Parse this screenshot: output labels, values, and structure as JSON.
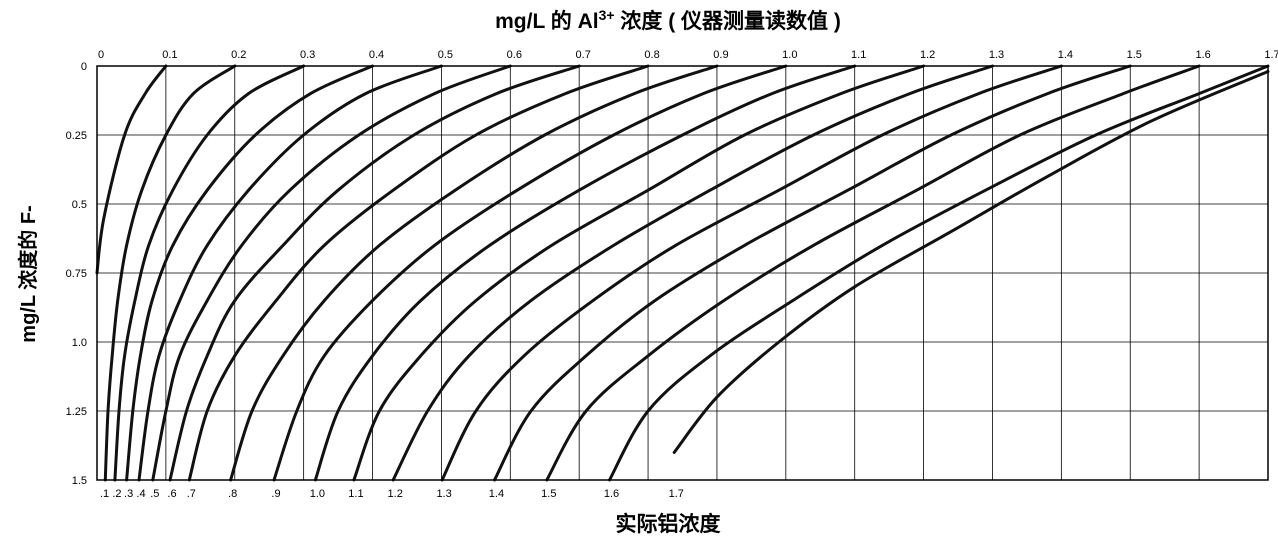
{
  "chart_data": {
    "type": "line",
    "title": "mg/L 的 Al",
    "title_superscript": "3+",
    "title_suffix": " 浓度 ( 仪器测量读数值 )",
    "ylabel": "mg/L 浓度的 F-",
    "xlabel": "实际铝浓度",
    "x_axis": {
      "range": [
        0,
        1.7
      ],
      "ticks": [
        0,
        0.1,
        0.2,
        0.3,
        0.4,
        0.5,
        0.6,
        0.7,
        0.8,
        0.9,
        1.0,
        1.1,
        1.2,
        1.3,
        1.4,
        1.5,
        1.6,
        1.7
      ],
      "tick_labels": [
        "0",
        "0.1",
        "0.2",
        "0.3",
        "0.4",
        "0.5",
        "0.6",
        "0.7",
        "0.8",
        "0.9",
        "1.0",
        "1.1",
        "1.2",
        "1.3",
        "1.4",
        "1.5",
        "1.6",
        "1.7"
      ],
      "position": "top"
    },
    "y_axis": {
      "range": [
        0,
        1.5
      ],
      "inverted": true,
      "ticks": [
        0,
        0.25,
        0.5,
        0.75,
        1.0,
        1.25,
        1.5
      ],
      "tick_labels": [
        "0",
        "0.25",
        "0.5",
        "0.75",
        "1.0",
        "1.25",
        "1.5"
      ]
    },
    "grid": true,
    "bottom_labels": [
      {
        "text": ".1",
        "x": 0.008
      },
      {
        "text": ".2",
        "x": 0.026
      },
      {
        "text": ".3",
        "x": 0.043
      },
      {
        "text": ".4",
        "x": 0.061
      },
      {
        "text": ".5",
        "x": 0.081
      },
      {
        "text": ".6",
        "x": 0.106
      },
      {
        "text": ".7",
        "x": 0.134
      },
      {
        "text": ".8",
        "x": 0.194
      },
      {
        "text": ".9",
        "x": 0.257
      },
      {
        "text": "1.0",
        "x": 0.317
      },
      {
        "text": "1.1",
        "x": 0.373
      },
      {
        "text": "1.2",
        "x": 0.43
      },
      {
        "text": "1.3",
        "x": 0.501
      },
      {
        "text": "1.4",
        "x": 0.577
      },
      {
        "text": "1.5",
        "x": 0.653
      },
      {
        "text": "1.6",
        "x": 0.744
      },
      {
        "text": "1.7",
        "x": 0.838
      }
    ],
    "series": [
      {
        "x": [
          0.1,
          0.07,
          0.04,
          0.01,
          0.0
        ],
        "y": [
          0,
          0.1,
          0.25,
          0.55,
          0.75
        ]
      },
      {
        "x": [
          0.2,
          0.14,
          0.1,
          0.065,
          0.043,
          0.03,
          0.022,
          0.016,
          0.012
        ],
        "y": [
          0,
          0.1,
          0.25,
          0.45,
          0.65,
          0.85,
          1.05,
          1.25,
          1.5
        ]
      },
      {
        "x": [
          0.3,
          0.22,
          0.16,
          0.11,
          0.075,
          0.055,
          0.04,
          0.032,
          0.026
        ],
        "y": [
          0,
          0.1,
          0.25,
          0.45,
          0.65,
          0.85,
          1.05,
          1.25,
          1.5
        ]
      },
      {
        "x": [
          0.4,
          0.31,
          0.23,
          0.16,
          0.11,
          0.08,
          0.063,
          0.052,
          0.043
        ],
        "y": [
          0,
          0.1,
          0.25,
          0.45,
          0.65,
          0.85,
          1.05,
          1.25,
          1.5
        ]
      },
      {
        "x": [
          0.5,
          0.39,
          0.3,
          0.22,
          0.16,
          0.12,
          0.09,
          0.074,
          0.061
        ],
        "y": [
          0,
          0.1,
          0.25,
          0.45,
          0.65,
          0.85,
          1.05,
          1.25,
          1.5
        ]
      },
      {
        "x": [
          0.6,
          0.49,
          0.38,
          0.28,
          0.21,
          0.16,
          0.12,
          0.1,
          0.081
        ],
        "y": [
          0,
          0.1,
          0.25,
          0.45,
          0.65,
          0.85,
          1.05,
          1.25,
          1.5
        ]
      },
      {
        "x": [
          0.7,
          0.58,
          0.46,
          0.35,
          0.27,
          0.2,
          0.16,
          0.13,
          0.106
        ],
        "y": [
          0,
          0.1,
          0.25,
          0.45,
          0.65,
          0.85,
          1.05,
          1.25,
          1.5
        ]
      },
      {
        "x": [
          0.8,
          0.68,
          0.55,
          0.43,
          0.33,
          0.26,
          0.2,
          0.16,
          0.134
        ],
        "y": [
          0,
          0.1,
          0.25,
          0.45,
          0.65,
          0.85,
          1.05,
          1.25,
          1.5
        ]
      },
      {
        "x": [
          0.9,
          0.78,
          0.65,
          0.52,
          0.41,
          0.33,
          0.27,
          0.225,
          0.194
        ],
        "y": [
          0,
          0.1,
          0.25,
          0.45,
          0.65,
          0.85,
          1.05,
          1.25,
          1.5
        ]
      },
      {
        "x": [
          1.0,
          0.88,
          0.75,
          0.61,
          0.49,
          0.4,
          0.33,
          0.29,
          0.257
        ],
        "y": [
          0,
          0.1,
          0.25,
          0.45,
          0.65,
          0.85,
          1.05,
          1.25,
          1.5
        ]
      },
      {
        "x": [
          1.1,
          0.98,
          0.85,
          0.7,
          0.57,
          0.47,
          0.4,
          0.35,
          0.317
        ],
        "y": [
          0,
          0.1,
          0.25,
          0.45,
          0.65,
          0.85,
          1.05,
          1.25,
          1.5
        ]
      },
      {
        "x": [
          1.2,
          1.08,
          0.94,
          0.8,
          0.66,
          0.55,
          0.47,
          0.41,
          0.373
        ],
        "y": [
          0,
          0.1,
          0.25,
          0.45,
          0.65,
          0.85,
          1.05,
          1.25,
          1.5
        ]
      },
      {
        "x": [
          1.3,
          1.18,
          1.04,
          0.89,
          0.75,
          0.63,
          0.54,
          0.48,
          0.43
        ],
        "y": [
          0,
          0.1,
          0.25,
          0.45,
          0.65,
          0.85,
          1.05,
          1.25,
          1.5
        ]
      },
      {
        "x": [
          1.4,
          1.28,
          1.14,
          0.99,
          0.84,
          0.72,
          0.62,
          0.55,
          0.501
        ],
        "y": [
          0,
          0.1,
          0.25,
          0.45,
          0.65,
          0.85,
          1.05,
          1.25,
          1.5
        ]
      },
      {
        "x": [
          1.5,
          1.38,
          1.24,
          1.09,
          0.94,
          0.81,
          0.71,
          0.63,
          0.577
        ],
        "y": [
          0,
          0.1,
          0.25,
          0.45,
          0.65,
          0.85,
          1.05,
          1.25,
          1.5
        ]
      },
      {
        "x": [
          1.6,
          1.49,
          1.34,
          1.19,
          1.04,
          0.91,
          0.8,
          0.71,
          0.653
        ],
        "y": [
          0,
          0.1,
          0.25,
          0.45,
          0.65,
          0.85,
          1.05,
          1.25,
          1.5
        ]
      },
      {
        "x": [
          1.7,
          1.6,
          1.45,
          1.29,
          1.14,
          1.01,
          0.89,
          0.8,
          0.744
        ],
        "y": [
          0,
          0.1,
          0.25,
          0.45,
          0.65,
          0.85,
          1.05,
          1.25,
          1.5
        ]
      },
      {
        "x": [
          1.7,
          1.53,
          1.38,
          1.24,
          1.1,
          0.99,
          0.9,
          0.838
        ],
        "y": [
          0.02,
          0.2,
          0.4,
          0.6,
          0.8,
          1.0,
          1.2,
          1.4
        ]
      }
    ]
  }
}
